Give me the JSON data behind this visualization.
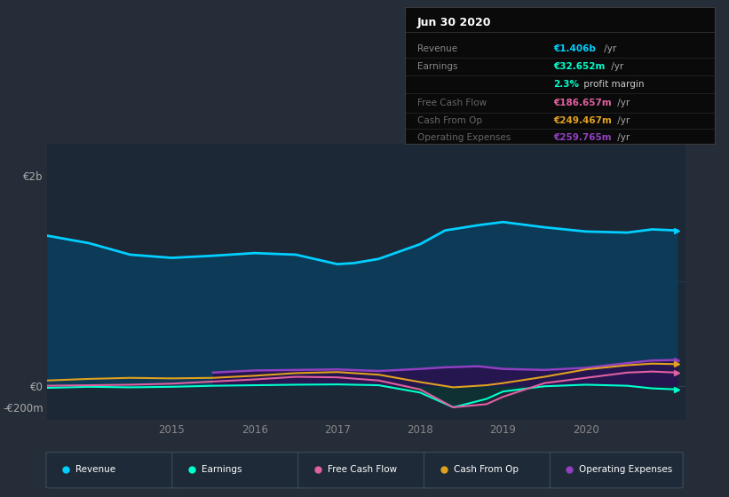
{
  "bg_color": "#252d38",
  "plot_bg_color": "#1c2836",
  "grid_color": "#2e3f50",
  "title": "Jun 30 2020",
  "info_box_title": "Jun 30 2020",
  "info_box_bg": "#0a0a0a",
  "info_box_border": "#3a3a3a",
  "row_info": [
    {
      "label": "Revenue",
      "value": "€1.406b",
      "suffix": " /yr",
      "value_color": "#00cfff",
      "label_color": "#888888"
    },
    {
      "label": "Earnings",
      "value": "€32.652m",
      "suffix": " /yr",
      "value_color": "#00ffcc",
      "label_color": "#888888"
    },
    {
      "label": "",
      "value": "2.3%",
      "suffix": " profit margin",
      "value_color": "#00ffcc",
      "label_color": "#888888",
      "suffix_color": "#cccccc"
    },
    {
      "label": "Free Cash Flow",
      "value": "€186.657m",
      "suffix": " /yr",
      "value_color": "#e060a0",
      "label_color": "#666666"
    },
    {
      "label": "Cash From Op",
      "value": "€249.467m",
      "suffix": " /yr",
      "value_color": "#e0a020",
      "label_color": "#666666"
    },
    {
      "label": "Operating Expenses",
      "value": "€259.765m",
      "suffix": " /yr",
      "value_color": "#9040c0",
      "label_color": "#666666"
    }
  ],
  "ytick_values": [
    2000,
    0,
    -200
  ],
  "ytick_labels": [
    "€2b",
    "€0",
    "-€200m"
  ],
  "ylim": [
    -320,
    2300
  ],
  "xlim_start": 2013.5,
  "xlim_end": 2021.2,
  "xtick_years": [
    2015,
    2016,
    2017,
    2018,
    2019,
    2020
  ],
  "legend": [
    {
      "label": "Revenue",
      "color": "#00cfff"
    },
    {
      "label": "Earnings",
      "color": "#00ffcc"
    },
    {
      "label": "Free Cash Flow",
      "color": "#e060a0"
    },
    {
      "label": "Cash From Op",
      "color": "#e0a020"
    },
    {
      "label": "Operating Expenses",
      "color": "#9040c0"
    }
  ],
  "revenue_x": [
    2013.5,
    2014.0,
    2014.5,
    2015.0,
    2015.5,
    2016.0,
    2016.5,
    2017.0,
    2017.2,
    2017.5,
    2018.0,
    2018.3,
    2018.7,
    2019.0,
    2019.5,
    2020.0,
    2020.5,
    2020.8,
    2021.1
  ],
  "revenue_y": [
    1430,
    1360,
    1250,
    1220,
    1240,
    1265,
    1250,
    1160,
    1170,
    1210,
    1350,
    1480,
    1530,
    1560,
    1510,
    1470,
    1460,
    1490,
    1480
  ],
  "earnings_x": [
    2013.5,
    2014.0,
    2014.5,
    2015.0,
    2015.5,
    2016.0,
    2016.5,
    2017.0,
    2017.5,
    2018.0,
    2018.4,
    2018.8,
    2019.0,
    2019.5,
    2020.0,
    2020.5,
    2020.8,
    2021.1
  ],
  "earnings_y": [
    -15,
    -5,
    -10,
    -5,
    5,
    10,
    15,
    18,
    10,
    -60,
    -200,
    -120,
    -50,
    0,
    15,
    5,
    -20,
    -30
  ],
  "fcf_x": [
    2013.5,
    2014.0,
    2014.5,
    2015.0,
    2015.5,
    2016.0,
    2016.5,
    2017.0,
    2017.5,
    2018.0,
    2018.4,
    2018.8,
    2019.0,
    2019.5,
    2020.0,
    2020.5,
    2020.8,
    2021.1
  ],
  "fcf_y": [
    5,
    10,
    15,
    25,
    45,
    65,
    90,
    85,
    55,
    -30,
    -200,
    -170,
    -100,
    30,
    80,
    130,
    140,
    130
  ],
  "cfo_x": [
    2013.5,
    2014.0,
    2014.5,
    2015.0,
    2015.5,
    2016.0,
    2016.5,
    2017.0,
    2017.5,
    2018.0,
    2018.4,
    2018.8,
    2019.0,
    2019.5,
    2020.0,
    2020.5,
    2020.8,
    2021.1
  ],
  "cfo_y": [
    55,
    70,
    80,
    75,
    80,
    100,
    125,
    135,
    110,
    40,
    -10,
    10,
    30,
    90,
    160,
    200,
    215,
    210
  ],
  "opex_x": [
    2015.5,
    2016.0,
    2016.5,
    2017.0,
    2017.5,
    2018.0,
    2018.3,
    2018.7,
    2019.0,
    2019.5,
    2020.0,
    2020.5,
    2020.8,
    2021.1
  ],
  "opex_y": [
    130,
    150,
    155,
    160,
    145,
    165,
    180,
    190,
    165,
    155,
    175,
    220,
    245,
    250
  ]
}
